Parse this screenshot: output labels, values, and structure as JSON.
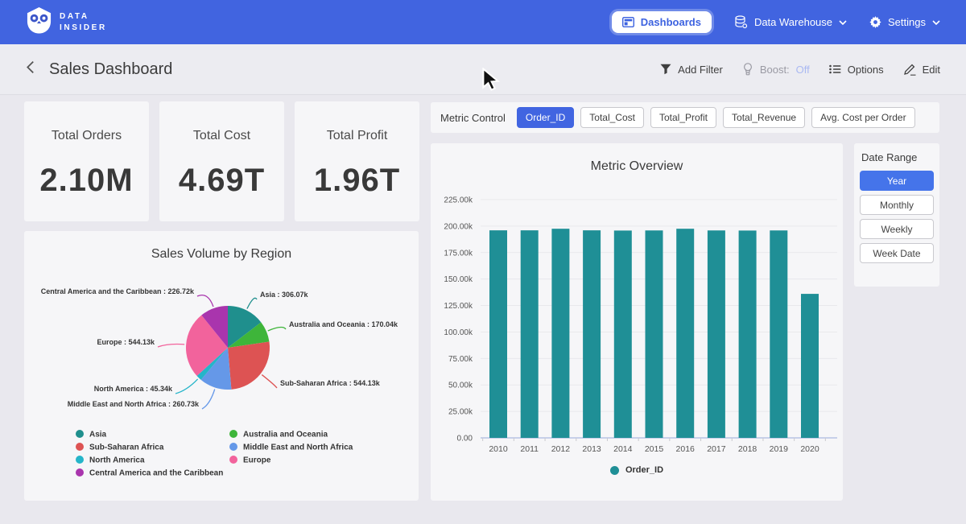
{
  "navbar": {
    "brand": {
      "line1": "DATA",
      "line2": "INSIDER"
    },
    "items": [
      {
        "label": "Dashboards",
        "icon": "dashboard-icon",
        "active": true,
        "dropdown": false
      },
      {
        "label": "Data Warehouse",
        "icon": "database-icon",
        "active": false,
        "dropdown": true
      },
      {
        "label": "Settings",
        "icon": "gear-icon",
        "active": false,
        "dropdown": true
      }
    ]
  },
  "header": {
    "title": "Sales Dashboard",
    "actions": [
      {
        "label": "Add Filter",
        "icon": "filter-icon"
      },
      {
        "label": "Boost:",
        "value": "Off",
        "icon": "boost-icon",
        "muted": true
      },
      {
        "label": "Options",
        "icon": "options-icon"
      },
      {
        "label": "Edit",
        "icon": "edit-icon"
      }
    ]
  },
  "kpis": [
    {
      "label": "Total Orders",
      "value": "2.10M"
    },
    {
      "label": "Total Cost",
      "value": "4.69T"
    },
    {
      "label": "Total Profit",
      "value": "1.96T"
    }
  ],
  "metric_control": {
    "label": "Metric Control",
    "options": [
      {
        "label": "Order_ID",
        "active": true
      },
      {
        "label": "Total_Cost",
        "active": false
      },
      {
        "label": "Total_Profit",
        "active": false
      },
      {
        "label": "Total_Revenue",
        "active": false
      },
      {
        "label": "Avg. Cost per Order",
        "active": false
      }
    ]
  },
  "date_range": {
    "title": "Date Range",
    "options": [
      {
        "label": "Year",
        "active": true
      },
      {
        "label": "Monthly",
        "active": false
      },
      {
        "label": "Weekly",
        "active": false
      },
      {
        "label": "Week Date",
        "active": false
      }
    ]
  },
  "chart_data": [
    {
      "type": "bar",
      "title": "Metric Overview",
      "categories": [
        "2010",
        "2011",
        "2012",
        "2013",
        "2014",
        "2015",
        "2016",
        "2017",
        "2018",
        "2019",
        "2020"
      ],
      "series": [
        {
          "name": "Order_ID",
          "color": "#1f8f96",
          "values": [
            196.0,
            196.0,
            197.5,
            196.0,
            195.8,
            195.9,
            197.5,
            195.9,
            195.8,
            195.9,
            136.0
          ]
        }
      ],
      "value_unit": "k",
      "ylim": [
        0,
        225
      ],
      "ytick_step": 25,
      "ytick_labels": [
        "0.00",
        "25.00k",
        "50.00k",
        "75.00k",
        "100.00k",
        "125.00k",
        "150.00k",
        "175.00k",
        "200.00k",
        "225.00k"
      ],
      "grid": true,
      "legend_position": "bottom"
    },
    {
      "type": "pie",
      "title": "Sales Volume by Region",
      "slices": [
        {
          "name": "Asia",
          "value": 306.07,
          "callout": "Asia : 306.07k",
          "color": "#1f8f8d"
        },
        {
          "name": "Australia and Oceania",
          "value": 170.04,
          "callout": "Australia and Oceania : 170.04k",
          "color": "#3eb53a"
        },
        {
          "name": "Sub-Saharan Africa",
          "value": 544.13,
          "callout": "Sub-Saharan Africa : 544.13k",
          "color": "#dd5353"
        },
        {
          "name": "Middle East and North Africa",
          "value": 260.73,
          "callout": "Middle East and North Africa : 260.73k",
          "color": "#6598e8"
        },
        {
          "name": "North America",
          "value": 45.34,
          "callout": "North America : 45.34k",
          "color": "#25b5c9"
        },
        {
          "name": "Europe",
          "value": 544.13,
          "callout": "Europe : 544.13k",
          "color": "#f2639c"
        },
        {
          "name": "Central America and the Caribbean",
          "value": 226.72,
          "callout": "Central America and the Caribbean : 226.72k",
          "color": "#a935ad"
        }
      ],
      "value_unit": "k",
      "legend_columns": [
        [
          "Asia",
          "Sub-Saharan Africa",
          "North America",
          "Central America and the Caribbean"
        ],
        [
          "Australia and Oceania",
          "Middle East and North Africa",
          "Europe"
        ]
      ],
      "legend_position": "bottom"
    }
  ],
  "colors": {
    "navbar_blue": "#4164e0",
    "active_button_blue": "#4165e1",
    "bar_teal": "#1f8f96",
    "boost_off_blue": "#aab9f2",
    "page_background": "#e9e8ee",
    "panel_background": "#f6f6f8"
  }
}
